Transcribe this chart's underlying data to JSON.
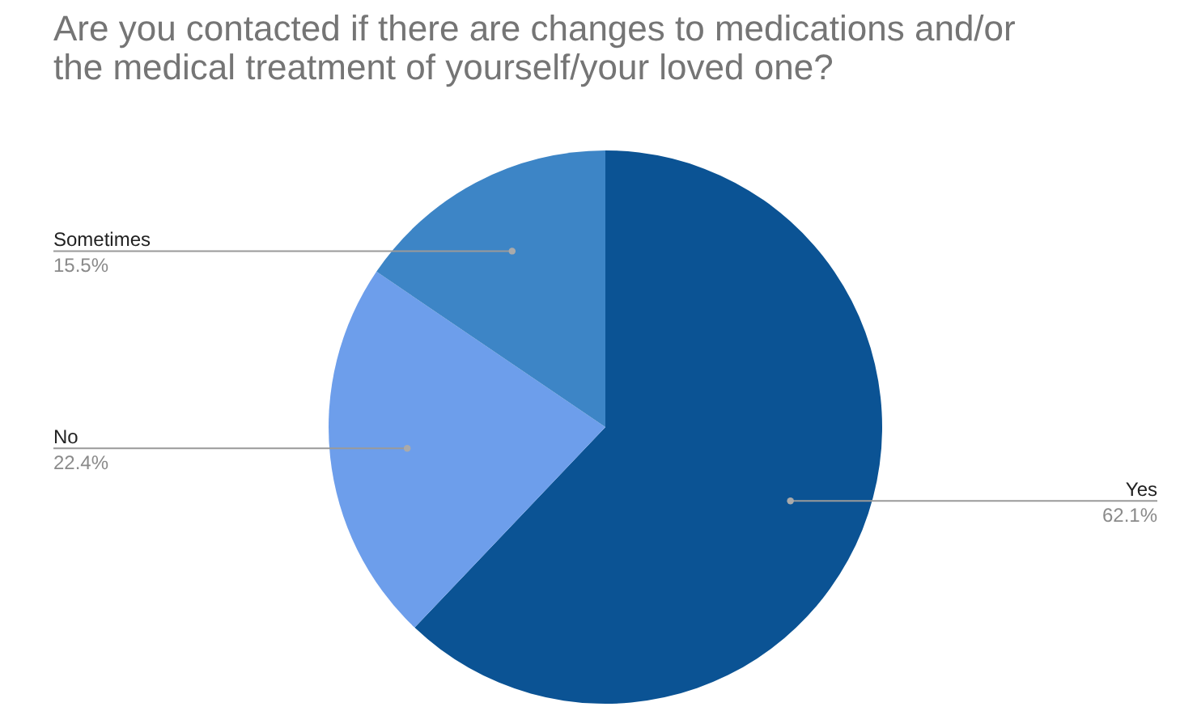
{
  "chart_data": {
    "type": "pie",
    "title": "Are you contacted if there are changes to medications and/or the medical treatment of yourself/your loved one?",
    "categories": [
      "Yes",
      "No",
      "Sometimes"
    ],
    "values": [
      62.1,
      22.4,
      15.5
    ],
    "value_labels": [
      "62.1%",
      "22.4%",
      "15.5%"
    ],
    "colors": [
      "#0b5394",
      "#6d9eeb",
      "#3d85c6"
    ]
  }
}
